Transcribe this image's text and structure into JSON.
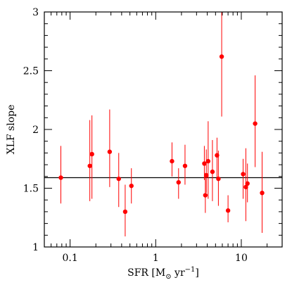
{
  "chart_data": {
    "type": "scatter",
    "title": "",
    "xlabel_parts": {
      "prefix": "SFR [M",
      "sub": "⊙",
      "mid": " yr",
      "sup": "−1",
      "suffix": "]"
    },
    "ylabel": "XLF slope",
    "xscale": "log",
    "xlim": [
      0.05,
      30
    ],
    "ylim": [
      1,
      3
    ],
    "x_ticks": [
      0.1,
      1,
      10
    ],
    "x_tick_labels": [
      "0.1",
      "1",
      "10"
    ],
    "y_ticks": [
      1,
      1.5,
      2,
      2.5,
      3
    ],
    "y_tick_labels": [
      "1",
      "1.5",
      "2",
      "2.5",
      "3"
    ],
    "grid": false,
    "legend": "none",
    "reference_line": {
      "y": 1.59
    },
    "colors": {
      "points": "#ff0000",
      "errorbars": "#ff0000",
      "axes": "#000000",
      "reference_line": "#000000"
    },
    "series": [
      {
        "points": [
          {
            "x": 0.078,
            "y": 1.59,
            "ylo": 1.37,
            "yhi": 1.86
          },
          {
            "x": 0.17,
            "y": 1.69,
            "ylo": 1.39,
            "yhi": 2.08
          },
          {
            "x": 0.18,
            "y": 1.79,
            "ylo": 1.41,
            "yhi": 2.12
          },
          {
            "x": 0.29,
            "y": 1.81,
            "ylo": 1.51,
            "yhi": 2.17
          },
          {
            "x": 0.37,
            "y": 1.58,
            "ylo": 1.34,
            "yhi": 1.8
          },
          {
            "x": 0.44,
            "y": 1.3,
            "ylo": 1.09,
            "yhi": 1.53
          },
          {
            "x": 0.52,
            "y": 1.52,
            "ylo": 1.37,
            "yhi": 1.67
          },
          {
            "x": 1.55,
            "y": 1.73,
            "ylo": 1.6,
            "yhi": 1.89
          },
          {
            "x": 1.85,
            "y": 1.55,
            "ylo": 1.41,
            "yhi": 1.67
          },
          {
            "x": 2.2,
            "y": 1.69,
            "ylo": 1.53,
            "yhi": 1.87
          },
          {
            "x": 3.7,
            "y": 1.71,
            "ylo": 1.57,
            "yhi": 1.86
          },
          {
            "x": 3.8,
            "y": 1.44,
            "ylo": 1.29,
            "yhi": 1.63
          },
          {
            "x": 3.9,
            "y": 1.61,
            "ylo": 1.46,
            "yhi": 1.83
          },
          {
            "x": 4.1,
            "y": 1.73,
            "ylo": 1.41,
            "yhi": 2.07
          },
          {
            "x": 4.6,
            "y": 1.64,
            "ylo": 1.39,
            "yhi": 1.91
          },
          {
            "x": 5.2,
            "y": 1.78,
            "ylo": 1.59,
            "yhi": 1.93
          },
          {
            "x": 5.4,
            "y": 1.58,
            "ylo": 1.35,
            "yhi": 1.82
          },
          {
            "x": 5.9,
            "y": 2.62,
            "ylo": 2.11,
            "yhi": 3.0
          },
          {
            "x": 7.0,
            "y": 1.31,
            "ylo": 1.21,
            "yhi": 1.44
          },
          {
            "x": 10.5,
            "y": 1.62,
            "ylo": 1.41,
            "yhi": 1.75
          },
          {
            "x": 11.3,
            "y": 1.51,
            "ylo": 1.22,
            "yhi": 1.84
          },
          {
            "x": 11.8,
            "y": 1.54,
            "ylo": 1.38,
            "yhi": 1.71
          },
          {
            "x": 14.5,
            "y": 2.05,
            "ylo": 1.68,
            "yhi": 2.46
          },
          {
            "x": 17.5,
            "y": 1.46,
            "ylo": 1.12,
            "yhi": 1.81
          }
        ]
      }
    ]
  }
}
